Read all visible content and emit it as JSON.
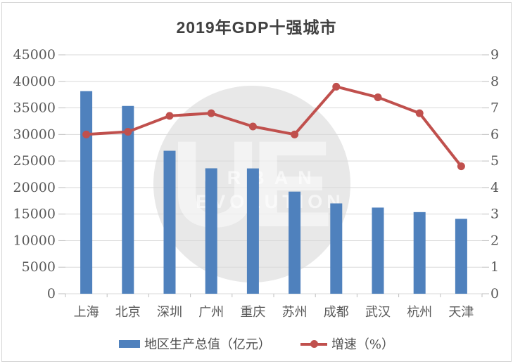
{
  "title": "2019年GDP十强城市",
  "legend": [
    {
      "label": "地区生产总值（亿元）",
      "type": "bar",
      "color": "#4F81BD"
    },
    {
      "label": "增速（%）",
      "type": "line",
      "color": "#C0504D"
    }
  ],
  "watermark": {
    "monogram": "UE",
    "line1": "URBAN",
    "line2": "EVOLUTION"
  },
  "colors": {
    "bar": "#4F81BD",
    "line": "#C0504D",
    "grid": "#D9D9D9",
    "tick": "#BFBFBF",
    "axis_text": "#595959",
    "title_text": "#404040",
    "border": "#D6D6D6",
    "watermark_circle": "#C9C9C9",
    "watermark_text": "#FFFFFF"
  },
  "chart_data": {
    "type": "combo",
    "title": "2019年GDP十强城市",
    "categories": [
      "上海",
      "北京",
      "深圳",
      "广州",
      "重庆",
      "苏州",
      "成都",
      "武汉",
      "杭州",
      "天津"
    ],
    "category_slugs": [
      "shanghai",
      "beijing",
      "shenzhen",
      "guangzhou",
      "chongqing",
      "suzhou",
      "chengdu",
      "wuhan",
      "hangzhou",
      "tianjin"
    ],
    "series": [
      {
        "name": "地区生产总值（亿元）",
        "type": "bar",
        "axis": "left",
        "color": "#4F81BD",
        "values": [
          38155,
          35371,
          26927,
          23629,
          23606,
          19236,
          17013,
          16223,
          15373,
          14104
        ]
      },
      {
        "name": "增速（%）",
        "type": "line",
        "axis": "right",
        "color": "#C0504D",
        "values": [
          6.0,
          6.1,
          6.7,
          6.8,
          6.3,
          6.0,
          7.8,
          7.4,
          6.8,
          4.8
        ]
      }
    ],
    "left_axis": {
      "min": 0,
      "max": 45000,
      "step": 5000,
      "tick_labels": [
        "0",
        "5000",
        "10000",
        "15000",
        "20000",
        "25000",
        "30000",
        "35000",
        "40000",
        "45000"
      ]
    },
    "right_axis": {
      "min": 0,
      "max": 9,
      "step": 1,
      "tick_labels": [
        "0",
        "1",
        "2",
        "3",
        "4",
        "5",
        "6",
        "7",
        "8",
        "9"
      ]
    },
    "grid": true,
    "legend_position": "bottom",
    "xlabel": "",
    "ylabel": ""
  }
}
